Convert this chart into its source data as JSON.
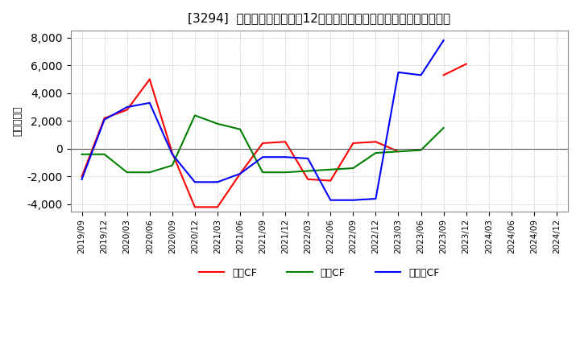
{
  "title": "[3294]  キャッシュフローの12か月移動合計の対前年同期増減額の推移",
  "ylabel": "（百万円）",
  "x_labels": [
    "2019/09",
    "2019/12",
    "2020/03",
    "2020/06",
    "2020/09",
    "2020/12",
    "2021/03",
    "2021/06",
    "2021/09",
    "2021/12",
    "2022/03",
    "2022/06",
    "2022/09",
    "2022/12",
    "2023/03",
    "2023/06",
    "2023/09",
    "2023/12",
    "2024/03",
    "2024/06",
    "2024/09",
    "2024/12"
  ],
  "operating_cf": [
    -2000,
    2200,
    2800,
    5000,
    -300,
    -4200,
    -4200,
    -1800,
    400,
    500,
    -2200,
    -2300,
    400,
    500,
    -200,
    null,
    5300,
    6100,
    null,
    null,
    null,
    null
  ],
  "investing_cf": [
    -400,
    -400,
    -1700,
    -1700,
    -1200,
    2400,
    1800,
    1400,
    -1700,
    -1700,
    -1600,
    -1500,
    -1400,
    -300,
    -200,
    -100,
    1500,
    null,
    null,
    null,
    null,
    null
  ],
  "free_cf": [
    -2200,
    2100,
    3000,
    3300,
    -400,
    -2400,
    -2400,
    -1800,
    -600,
    -600,
    -700,
    -3700,
    -3700,
    -3600,
    5500,
    5300,
    7800,
    null,
    null,
    null,
    null,
    null
  ],
  "operating_color": "#ff0000",
  "investing_color": "#008000",
  "free_color": "#0000ff",
  "ylim": [
    -4500,
    8500
  ],
  "yticks": [
    -4000,
    -2000,
    0,
    2000,
    4000,
    6000,
    8000
  ],
  "background_color": "#ffffff",
  "grid_color": "#aaaaaa",
  "legend_labels": [
    "営業CF",
    "投資CF",
    "フリーCF"
  ]
}
